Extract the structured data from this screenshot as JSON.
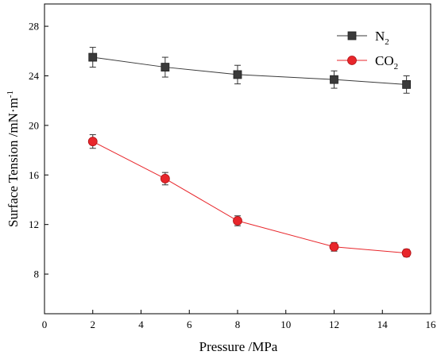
{
  "chart_data": {
    "type": "line",
    "title": "",
    "xlabel": "Pressure /MPa",
    "ylabel": "Surface Tension /mN·m",
    "ylabel_superscript": "-1",
    "xlim": [
      0,
      16
    ],
    "ylim": [
      4.8,
      29.8
    ],
    "xticks": [
      0,
      2,
      4,
      6,
      8,
      10,
      12,
      14,
      16
    ],
    "yticks": [
      8,
      12,
      16,
      20,
      24,
      28
    ],
    "grid": false,
    "legend_position": "top-right",
    "series": [
      {
        "name": "N",
        "name_subscript": "2",
        "color": "#3a3a3a",
        "marker": "square",
        "x": [
          2,
          5,
          8,
          12,
          15
        ],
        "y": [
          25.5,
          24.7,
          24.1,
          23.7,
          23.3
        ],
        "error": [
          0.8,
          0.8,
          0.75,
          0.7,
          0.7
        ]
      },
      {
        "name": "CO",
        "name_subscript": "2",
        "color": "#e8262b",
        "marker": "circle",
        "x": [
          2,
          5,
          8,
          12,
          15
        ],
        "y": [
          18.7,
          15.7,
          12.3,
          10.2,
          9.7
        ],
        "error": [
          0.55,
          0.5,
          0.4,
          0.35,
          0.3
        ]
      }
    ]
  }
}
